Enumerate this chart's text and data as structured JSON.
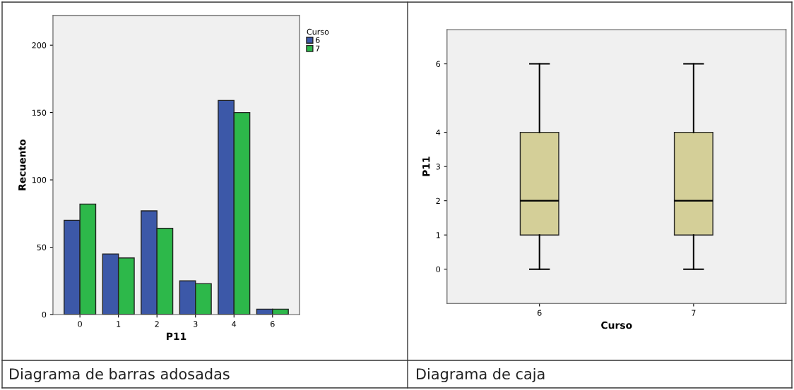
{
  "chart_data": [
    {
      "type": "bar",
      "categories": [
        "0",
        "1",
        "2",
        "3",
        "4",
        "6"
      ],
      "xlabel": "P11",
      "ylabel": "Recuento",
      "ylim": [
        0,
        222
      ],
      "yticks": [
        0,
        50,
        100,
        150,
        200
      ],
      "legend": "top right",
      "legend_title": "Curso",
      "grid": false,
      "series": [
        {
          "name": "6",
          "color": "#3c58a8",
          "values": [
            70,
            45,
            77,
            25,
            159,
            4
          ]
        },
        {
          "name": "7",
          "color": "#2db84a",
          "values": [
            82,
            42,
            64,
            23,
            150,
            4
          ]
        }
      ],
      "annotations": [
        "Diagrama de barras adosadas"
      ]
    },
    {
      "type": "box",
      "categories": [
        "6",
        "7"
      ],
      "xlabel": "Curso",
      "ylabel": "P11",
      "ylim": [
        -1,
        7
      ],
      "yticks": [
        0,
        1,
        2,
        3,
        4,
        6
      ],
      "grid": false,
      "series": [
        {
          "color": "#d4cf98",
          "boxes": [
            {
              "low": 0,
              "q1": 1,
              "median": 2,
              "q3": 4,
              "high": 6
            },
            {
              "low": 0,
              "q1": 1,
              "median": 2,
              "q3": 4,
              "high": 6
            }
          ]
        }
      ],
      "annotations": [
        "Diagrama de caja"
      ]
    }
  ]
}
